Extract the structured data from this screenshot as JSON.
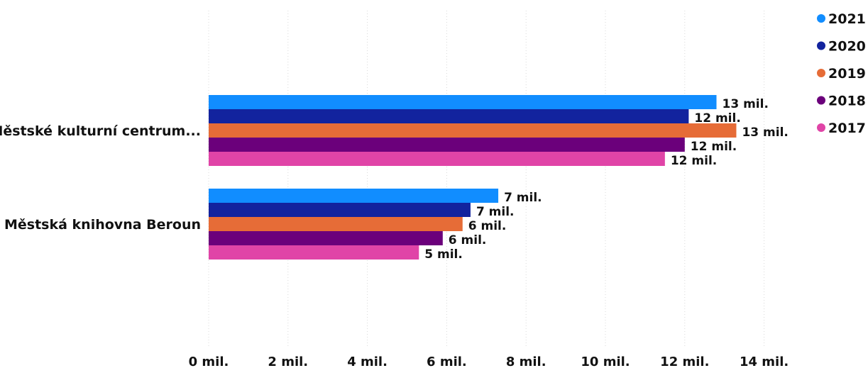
{
  "chart_data": {
    "type": "bar",
    "orientation": "horizontal",
    "categories": [
      "Městské kulturní centrum...",
      "Městská knihovna Beroun"
    ],
    "series": [
      {
        "name": "2021",
        "color": "#118DFF",
        "values": [
          12.8,
          7.3
        ],
        "labels": [
          "13 mil.",
          "7 mil."
        ]
      },
      {
        "name": "2020",
        "color": "#12239E",
        "values": [
          12.1,
          6.6
        ],
        "labels": [
          "12 mil.",
          "7 mil."
        ]
      },
      {
        "name": "2019",
        "color": "#E66C37",
        "values": [
          13.3,
          6.4
        ],
        "labels": [
          "13 mil.",
          "6 mil."
        ]
      },
      {
        "name": "2018",
        "color": "#6B007B",
        "values": [
          12.0,
          5.9
        ],
        "labels": [
          "12 mil.",
          "6 mil."
        ]
      },
      {
        "name": "2017",
        "color": "#E044A7",
        "values": [
          11.5,
          5.3
        ],
        "labels": [
          "12 mil.",
          "5 mil."
        ]
      }
    ],
    "xlim": [
      0,
      14
    ],
    "x_ticks": [
      0,
      2,
      4,
      6,
      8,
      10,
      12,
      14
    ],
    "x_tick_labels": [
      "0 mil.",
      "2 mil.",
      "4 mil.",
      "6 mil.",
      "8 mil.",
      "10 mil.",
      "12 mil.",
      "14 mil."
    ],
    "title": "",
    "xlabel": "",
    "ylabel": "",
    "grid": "vertical-dotted",
    "legend_position": "top-right"
  }
}
